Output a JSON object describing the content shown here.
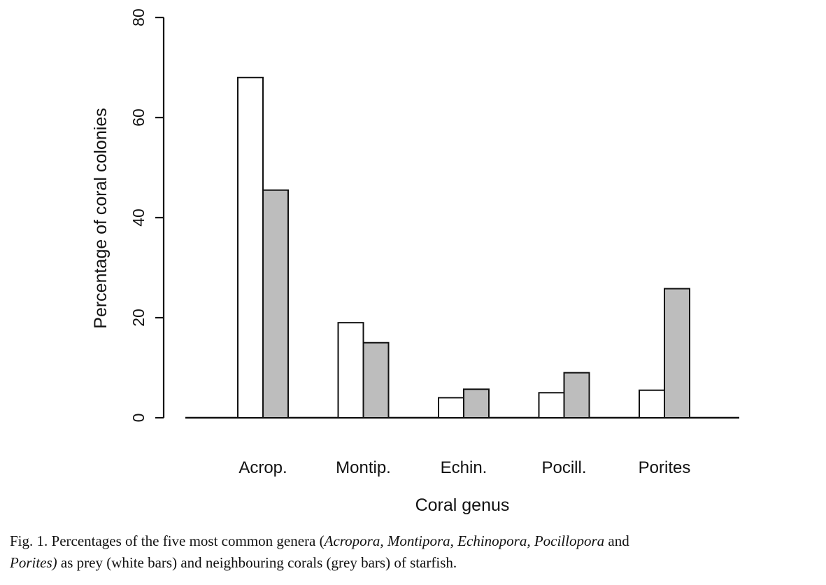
{
  "chart_data": {
    "type": "bar",
    "categories": [
      "Acrop.",
      "Montip.",
      "Echin.",
      "Pocill.",
      "Porites"
    ],
    "series": [
      {
        "values": [
          68,
          19,
          4,
          5,
          5.5
        ],
        "color": "#ffffff"
      },
      {
        "values": [
          45.5,
          15,
          5.7,
          9,
          25.8
        ],
        "color": "#bdbdbd"
      }
    ],
    "xlabel": "Coral genus",
    "ylabel": "Percentage of coral colonies",
    "yticks": [
      0,
      20,
      40,
      60,
      80
    ],
    "ylim": [
      0,
      80
    ],
    "grid": false,
    "legend": "none"
  },
  "caption": {
    "prefix": "Fig. 1. Percentages of the five most common genera (",
    "genera_line1": "Acropora, Montipora, Echinopora, Pocillopora",
    "mid": " and",
    "genera_line2": "Porites)",
    "suffix": " as prey (white bars) and neighbouring corals (grey bars) of starfish."
  }
}
